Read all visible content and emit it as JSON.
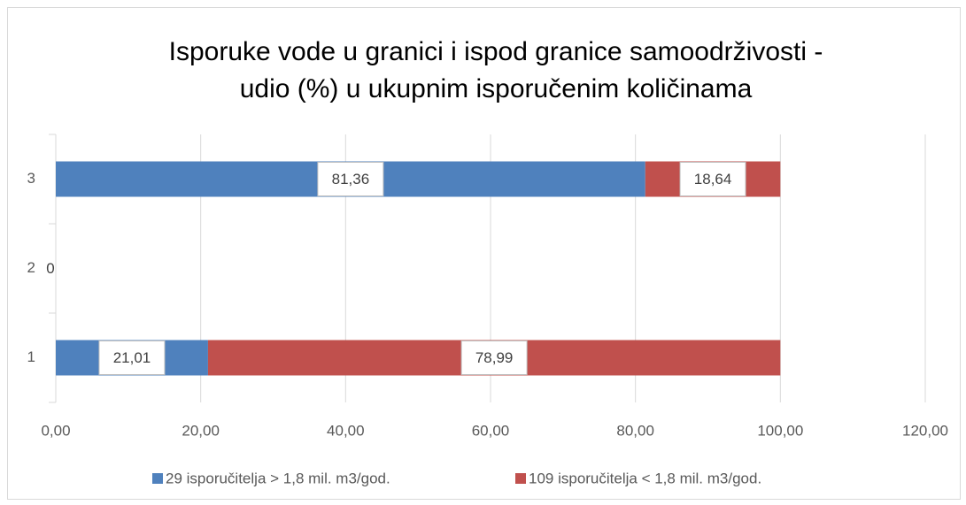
{
  "chart_data": {
    "type": "stacked_barh",
    "title": [
      "Isporuke vode u granici i ispod granice samoodrživosti -",
      "udio (%) u ukupnim isporučenim količinama"
    ],
    "categories": [
      "1",
      "2",
      "3"
    ],
    "series": [
      {
        "name": "29 isporučitelja > 1,8  mil. m3/god.",
        "color": "#4f81bd",
        "values": [
          21.01,
          0,
          81.36
        ],
        "value_labels": [
          "21,01",
          "0",
          "81,36"
        ]
      },
      {
        "name": "109 isporučitelja < 1,8  mil. m3/god.",
        "color": "#c0504d",
        "values": [
          78.99,
          null,
          18.64
        ],
        "value_labels": [
          "78,99",
          null,
          "18,64"
        ]
      }
    ],
    "xlim": [
      0,
      120
    ],
    "xticks": [
      {
        "value": 0,
        "label": "0,00"
      },
      {
        "value": 20,
        "label": "20,00"
      },
      {
        "value": 40,
        "label": "40,00"
      },
      {
        "value": 60,
        "label": "60,00"
      },
      {
        "value": 80,
        "label": "80,00"
      },
      {
        "value": 100,
        "label": "100,00"
      },
      {
        "value": 120,
        "label": "120,00"
      }
    ],
    "grid": true,
    "legend": "bottom"
  }
}
